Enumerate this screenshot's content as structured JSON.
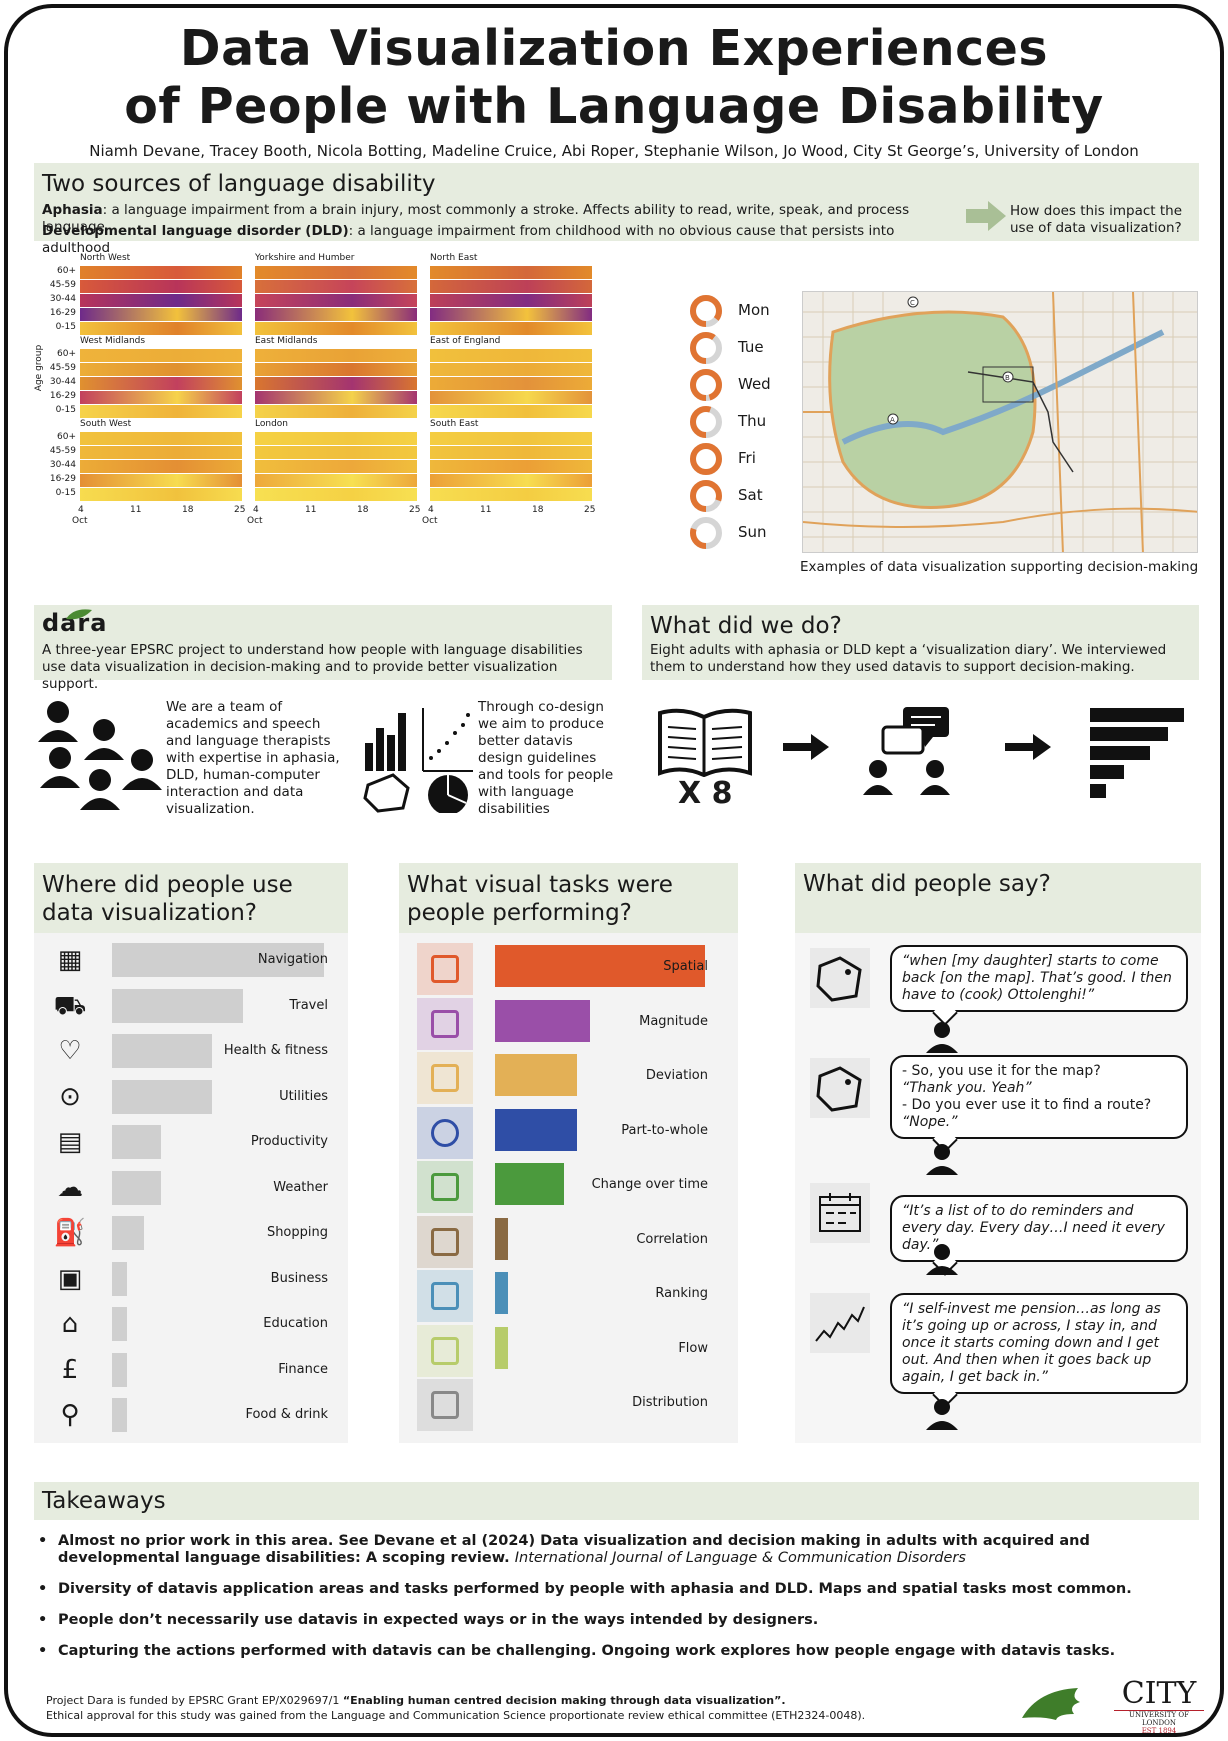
{
  "title_line1": "Data Visualization Experiences",
  "title_line2": "of People with Language Disability",
  "authors": "Niamh Devane, Tracey Booth, Nicola Botting, Madeline Cruice, Abi Roper, Stephanie Wilson, Jo Wood, City St George’s, University of London",
  "sources": {
    "heading": "Two sources of language disability",
    "aphasia_term": "Aphasia",
    "aphasia_def": ": a language impairment from a brain injury, most commonly a stroke. Affects ability to read, write, speak, and process language",
    "dld_term": "Developmental language disorder (DLD)",
    "dld_def": ": a language impairment from childhood with no obvious cause that persists into adulthood",
    "question": "How does this impact the use of data visualization?"
  },
  "heatmap": {
    "ylabel": "Age group",
    "ages": [
      "60+",
      "45-59",
      "30-44",
      "16-29",
      "0-15"
    ],
    "xticks": [
      "4",
      "11",
      "18",
      "25"
    ],
    "xmonth": "Oct",
    "regions": [
      "North West",
      "Yorkshire and Humber",
      "North East",
      "West Midlands",
      "East Midlands",
      "East of England",
      "South West",
      "London",
      "South East"
    ]
  },
  "days": [
    "Mon",
    "Tue",
    "Wed",
    "Thu",
    "Fri",
    "Sat",
    "Sun"
  ],
  "map_caption": "Examples of data visualization supporting decision-making",
  "dara": {
    "logo": "dara",
    "text": "A three-year EPSRC project to understand how people with language disabilities use data visualization in decision-making and to provide better visualization support.",
    "team": "We are a team of academics and speech and language therapists with expertise in aphasia, DLD, human-computer interaction and data visualization.",
    "codesign": "Through co-design we aim to produce better datavis design guidelines and tools for people with language disabilities"
  },
  "did": {
    "heading": "What did we do?",
    "text": "Eight adults with aphasia or DLD kept a ‘visualization diary’. We interviewed them to understand how they used datavis to support decision-making.",
    "count": "X 8"
  },
  "where": {
    "heading_line1": "Where did people use",
    "heading_line2": "data visualization?",
    "items": [
      {
        "label": "Navigation",
        "value": 1.0
      },
      {
        "label": "Travel",
        "value": 0.62
      },
      {
        "label": "Health & fitness",
        "value": 0.47
      },
      {
        "label": "Utilities",
        "value": 0.47
      },
      {
        "label": "Productivity",
        "value": 0.23
      },
      {
        "label": "Weather",
        "value": 0.23
      },
      {
        "label": "Shopping",
        "value": 0.15
      },
      {
        "label": "Business",
        "value": 0.07
      },
      {
        "label": "Education",
        "value": 0.07
      },
      {
        "label": "Finance",
        "value": 0.07
      },
      {
        "label": "Food & drink",
        "value": 0.07
      }
    ]
  },
  "tasks": {
    "heading_line1": "What visual tasks were",
    "heading_line2": "people performing?",
    "items": [
      {
        "label": "Spatial",
        "value": 1.0,
        "color": "#e0592b"
      },
      {
        "label": "Magnitude",
        "value": 0.45,
        "color": "#9a4fa8"
      },
      {
        "label": "Deviation",
        "value": 0.39,
        "color": "#e3b056"
      },
      {
        "label": "Part-to-whole",
        "value": 0.39,
        "color": "#2f4ea6"
      },
      {
        "label": "Change over time",
        "value": 0.33,
        "color": "#4b9a3d"
      },
      {
        "label": "Correlation",
        "value": 0.06,
        "color": "#8a6a43"
      },
      {
        "label": "Ranking",
        "value": 0.06,
        "color": "#4b8fb8"
      },
      {
        "label": "Flow",
        "value": 0.06,
        "color": "#b7cc6a"
      },
      {
        "label": "Distribution",
        "value": 0.0,
        "color": "#888888"
      }
    ]
  },
  "say": {
    "heading": "What did people say?",
    "q1": "“when [my daughter] starts to come back [on the map]. That’s good. I then have to (cook) Ottolenghi!”",
    "q2a": "-    So, you use it for the map?",
    "q2b": "“Thank you. Yeah”",
    "q2c": "-    Do you ever use it to find a route?",
    "q2d": "“Nope.”",
    "q3": "“It’s a list of to do reminders and every day. Every day…I need it every day.”",
    "q4": "“I self-invest me pension…as long as it’s going up or across, I stay in, and once it starts coming down and I get out. And then when it goes back up again, I get back in.”"
  },
  "takeaways": {
    "heading": "Takeaways",
    "t1a": "Almost no prior work in this area. See Devane et al (2024) Data visualization and decision making in adults with acquired and developmental language disabilities: A scoping review. ",
    "t1b": "International Journal of Language & Communication Disorders",
    "t2": "Diversity of datavis application areas and tasks performed by people with aphasia and DLD. Maps and spatial tasks most common.",
    "t3": "People don’t necessarily use datavis in expected ways or in the ways intended by designers.",
    "t4": "Capturing the actions performed with datavis can be challenging. Ongoing work explores how people engage with datavis tasks."
  },
  "footer": {
    "line1a": "Project Dara is funded by EPSRC Grant EP/X029697/1 ",
    "line1b": "“Enabling human centred decision making through data visualization”.",
    "line2": "Ethical approval for this study was gained from the Language and Communication Science proportionate review ethical committee (ETH2324-0048).",
    "city": "CITY",
    "city_sub": "UNIVERSITY OF LONDON",
    "city_est": "EST 1894"
  }
}
